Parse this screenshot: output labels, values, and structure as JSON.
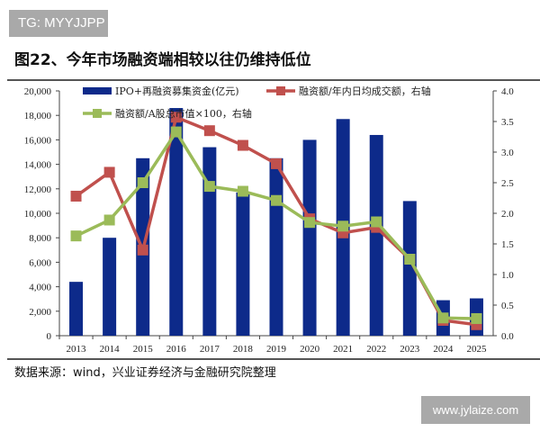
{
  "watermark_top": "TG: MYYJJPP",
  "title": "图22、今年市场融资端相较以往仍维持低位",
  "source": "数据来源：wind，兴业证券经济与金融研究院整理",
  "watermark_bottom": "www.jylaize.com",
  "chart_data": {
    "type": "bar+line",
    "categories": [
      "2013",
      "2014",
      "2015",
      "2016",
      "2017",
      "2018",
      "2019",
      "2020",
      "2021",
      "2022",
      "2023",
      "2024",
      "2025"
    ],
    "left_axis": {
      "ylim": [
        0,
        20000
      ],
      "ticks": [
        "0",
        "2,000",
        "4,000",
        "6,000",
        "8,000",
        "10,000",
        "12,000",
        "14,000",
        "16,000",
        "18,000",
        "20,000"
      ]
    },
    "right_axis": {
      "ylim": [
        0,
        4.0
      ],
      "ticks": [
        "0.0",
        "0.5",
        "1.0",
        "1.5",
        "2.0",
        "2.5",
        "3.0",
        "3.5",
        "4.0"
      ]
    },
    "legend_placement": "top",
    "series": [
      {
        "name": "IPO+再融资募集资金(亿元)",
        "type": "bar",
        "axis": "left",
        "color": "#0d2a8a",
        "values": [
          4400,
          8000,
          14500,
          18600,
          15400,
          11700,
          14500,
          16000,
          17700,
          16400,
          11000,
          2900,
          3050
        ]
      },
      {
        "name": "融资额/年内日均成交额，右轴",
        "type": "line",
        "axis": "right",
        "color": "#c0504d",
        "values": [
          2.28,
          2.67,
          1.4,
          3.57,
          3.35,
          3.11,
          2.81,
          1.91,
          1.68,
          1.77,
          1.25,
          0.25,
          0.18
        ]
      },
      {
        "name": "融资额/A股总市值×100，右轴",
        "type": "line",
        "axis": "right",
        "color": "#9bbb59",
        "values": [
          1.63,
          1.89,
          2.5,
          3.33,
          2.44,
          2.36,
          2.21,
          1.85,
          1.79,
          1.86,
          1.25,
          0.29,
          0.28
        ]
      }
    ]
  }
}
